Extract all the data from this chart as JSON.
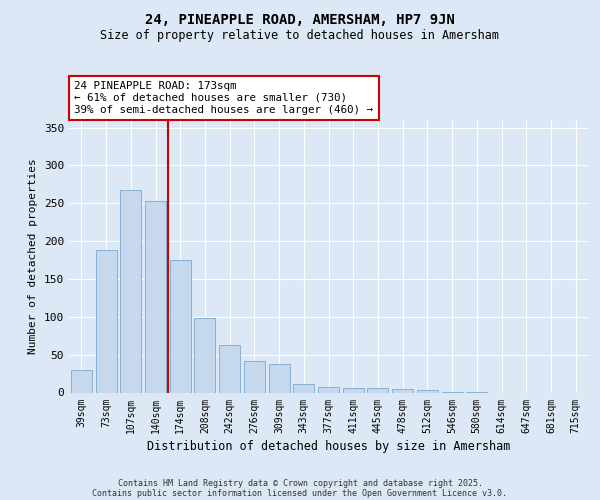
{
  "title": "24, PINEAPPLE ROAD, AMERSHAM, HP7 9JN",
  "subtitle": "Size of property relative to detached houses in Amersham",
  "xlabel": "Distribution of detached houses by size in Amersham",
  "ylabel": "Number of detached properties",
  "categories": [
    "39sqm",
    "73sqm",
    "107sqm",
    "140sqm",
    "174sqm",
    "208sqm",
    "242sqm",
    "276sqm",
    "309sqm",
    "343sqm",
    "377sqm",
    "411sqm",
    "445sqm",
    "478sqm",
    "512sqm",
    "546sqm",
    "580sqm",
    "614sqm",
    "647sqm",
    "681sqm",
    "715sqm"
  ],
  "values": [
    30,
    188,
    267,
    253,
    175,
    98,
    63,
    42,
    38,
    11,
    7,
    6,
    6,
    4,
    3,
    1,
    1,
    0,
    0,
    0,
    0
  ],
  "bar_color": "#c5d8ee",
  "bar_edge_color": "#7aaad0",
  "vline_x": 3.5,
  "vline_color": "#cc0000",
  "annotation_text": "24 PINEAPPLE ROAD: 173sqm\n← 61% of detached houses are smaller (730)\n39% of semi-detached houses are larger (460) →",
  "annotation_box_color": "#ffffff",
  "annotation_box_edge": "#cc0000",
  "ylim": [
    0,
    360
  ],
  "yticks": [
    0,
    50,
    100,
    150,
    200,
    250,
    300,
    350
  ],
  "bg_color": "#dce8f5",
  "plot_bg_color": "#dce8f5",
  "footer_line1": "Contains HM Land Registry data © Crown copyright and database right 2025.",
  "footer_line2": "Contains public sector information licensed under the Open Government Licence v3.0."
}
